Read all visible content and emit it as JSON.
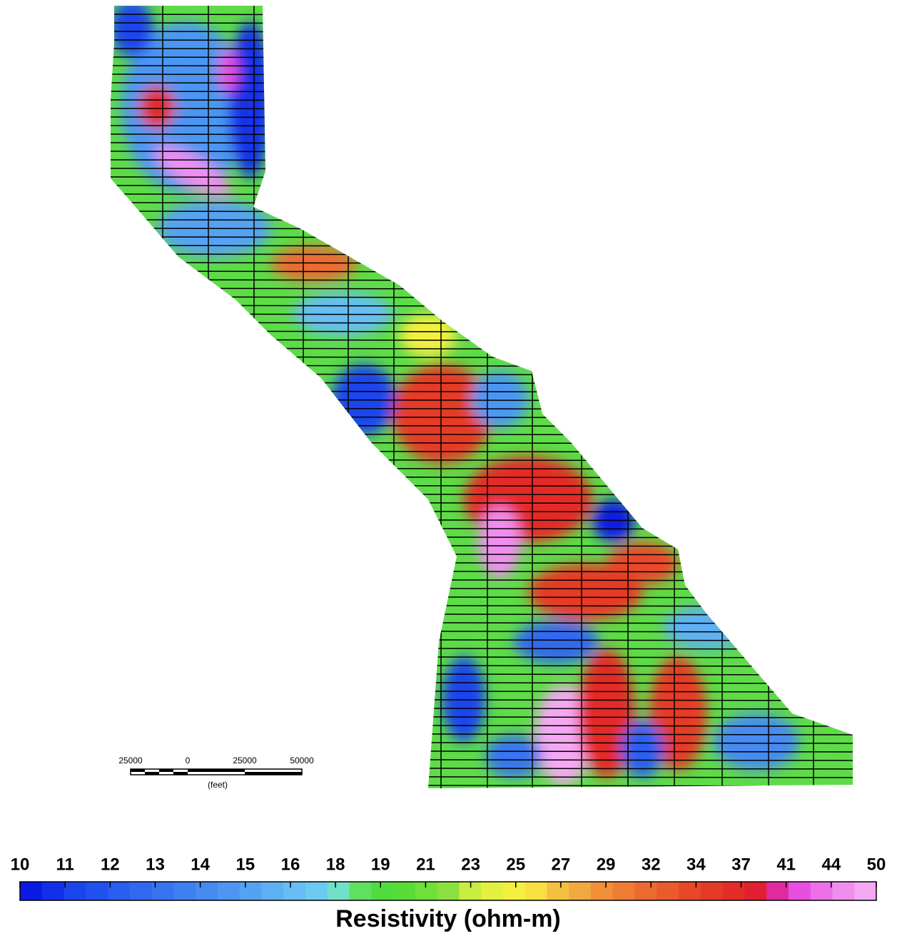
{
  "map": {
    "scale_bar": {
      "labels": [
        25000,
        0,
        25000,
        50000
      ],
      "unit": "(feet)"
    },
    "colorbar": {
      "ticks": [
        10,
        11,
        12,
        13,
        14,
        15,
        16,
        18,
        19,
        21,
        23,
        25,
        27,
        29,
        32,
        34,
        37,
        41,
        44,
        50
      ],
      "colors": [
        "#0a1ae6",
        "#1230ea",
        "#1a44ec",
        "#2050ee",
        "#2a5ef0",
        "#3068f0",
        "#3874f0",
        "#3e80f0",
        "#468af2",
        "#4c96f2",
        "#56a2f2",
        "#5eb0f4",
        "#66bef4",
        "#6ccaf2",
        "#70e0c8",
        "#60e060",
        "#50dc40",
        "#58dc38",
        "#6ee038",
        "#8ae040",
        "#c8ec40",
        "#e4f040",
        "#f4f040",
        "#f8e040",
        "#f4c040",
        "#f0a840",
        "#f09038",
        "#ee7c34",
        "#ec6a30",
        "#ea5a2c",
        "#e8482a",
        "#e63a28",
        "#e42c28",
        "#e02030",
        "#e02aa0",
        "#e84ee0",
        "#ee70e8",
        "#f08ef0",
        "#f4a8f4"
      ],
      "title": "Resistivity (ohm-m)"
    }
  }
}
